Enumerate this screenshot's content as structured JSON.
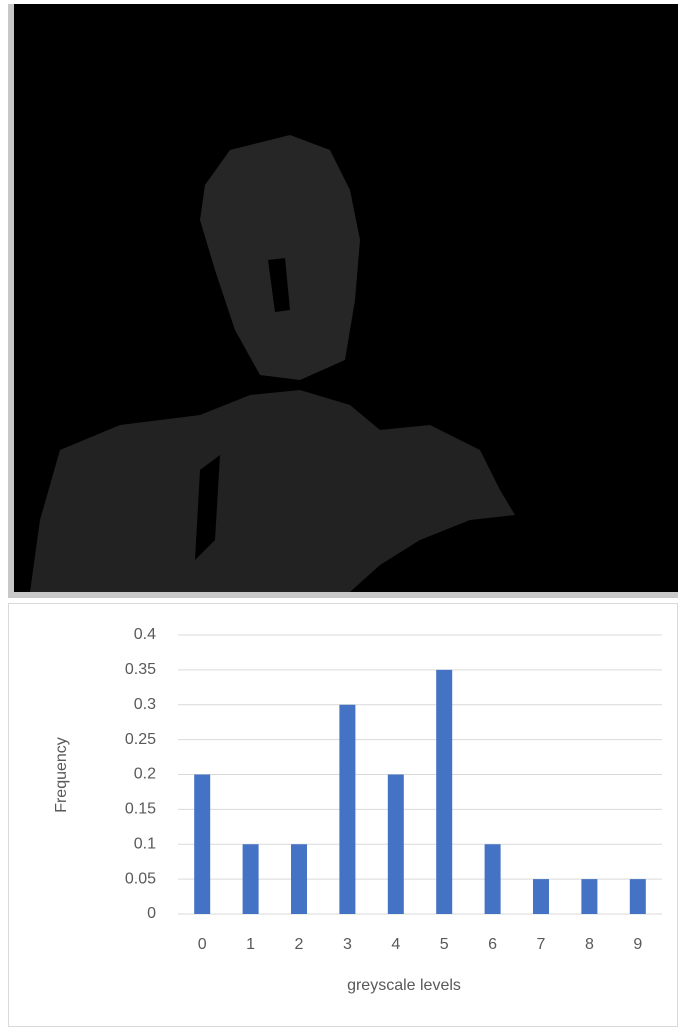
{
  "chart_data": {
    "type": "bar",
    "categories": [
      "0",
      "1",
      "2",
      "3",
      "4",
      "5",
      "6",
      "7",
      "8",
      "9"
    ],
    "values": [
      0.2,
      0.1,
      0.1,
      0.3,
      0.2,
      0.35,
      0.1,
      0.05,
      0.05,
      0.05
    ],
    "color": "#4472c4",
    "ylim": [
      0,
      0.4
    ],
    "yticks": [
      0,
      0.05,
      0.1,
      0.15,
      0.2,
      0.25,
      0.3,
      0.35,
      0.4
    ],
    "grid": true,
    "x_label": "greyscale levels",
    "y_label": "Frequency"
  }
}
